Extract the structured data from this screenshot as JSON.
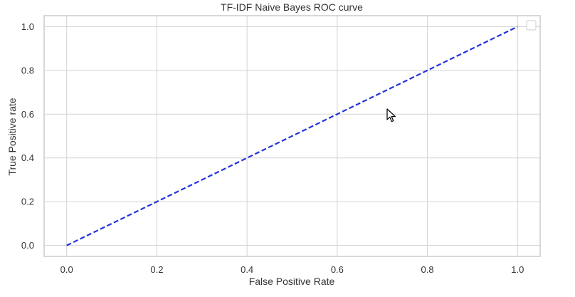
{
  "chart_data": {
    "type": "line",
    "title": "TF-IDF Naive Bayes ROC curve",
    "xlabel": "False Positive Rate",
    "ylabel": "True Positive rate",
    "xlim": [
      -0.05,
      1.05
    ],
    "ylim": [
      -0.05,
      1.05
    ],
    "xticks": [
      "0.0",
      "0.2",
      "0.4",
      "0.6",
      "0.8",
      "1.0"
    ],
    "yticks": [
      "0.0",
      "0.2",
      "0.4",
      "0.6",
      "0.8",
      "1.0"
    ],
    "grid": true,
    "legend_position": "top-right",
    "series": [
      {
        "x": [
          0.0,
          1.0
        ],
        "y": [
          0.0,
          1.0
        ],
        "color": "#2233dd",
        "style": "dashed"
      }
    ]
  },
  "colors": {
    "grid": "#d3d3d3",
    "frame": "#cccccc",
    "text": "#333333"
  },
  "cursor_icon": "mouse-pointer-icon"
}
